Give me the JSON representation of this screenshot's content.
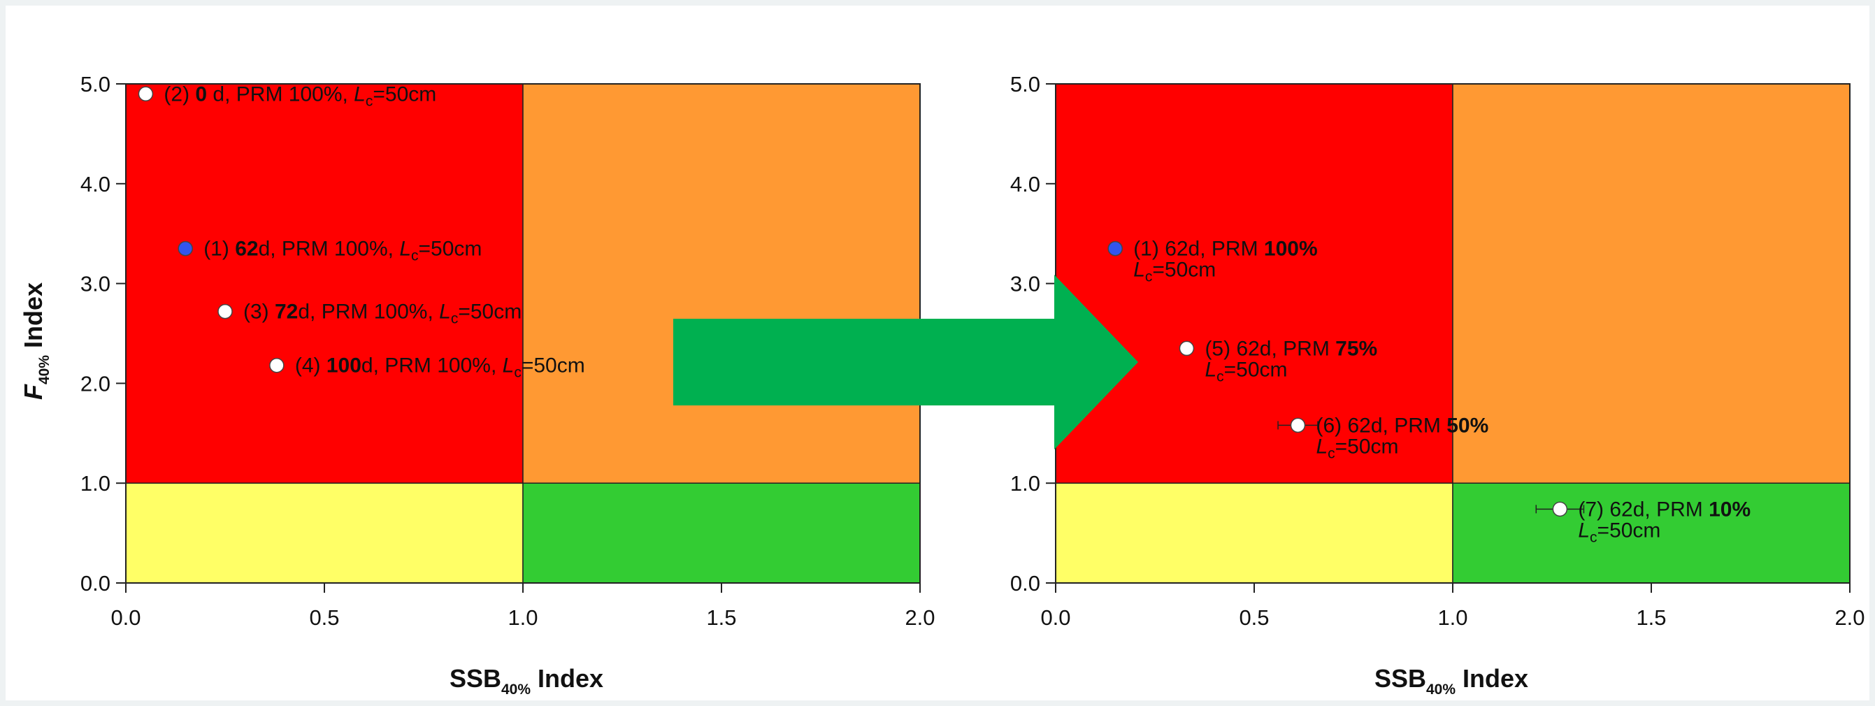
{
  "chart_data": [
    {
      "type": "scatter",
      "xlabel": "SSB40% Index",
      "ylabel": "F40% Index",
      "xlim": [
        0,
        2
      ],
      "ylim": [
        0,
        5
      ],
      "x_ticks": [
        "0.0",
        "0.5",
        "1.0",
        "1.5",
        "2.0"
      ],
      "y_ticks": [
        "0.0",
        "1.0",
        "2.0",
        "3.0",
        "4.0",
        "5.0"
      ],
      "zones": [
        {
          "x": [
            0,
            1
          ],
          "y": [
            1,
            5
          ],
          "color": "#ff0000"
        },
        {
          "x": [
            1,
            2
          ],
          "y": [
            1,
            5
          ],
          "color": "#ff9933"
        },
        {
          "x": [
            0,
            1
          ],
          "y": [
            0,
            1
          ],
          "color": "#ffff66"
        },
        {
          "x": [
            1,
            2
          ],
          "y": [
            0,
            1
          ],
          "color": "#33cc33"
        }
      ],
      "points": [
        {
          "x": 0.05,
          "y": 4.9,
          "color": "#ffffff",
          "label": [
            {
              "t": "(2) "
            },
            {
              "t": "0",
              "b": true
            },
            {
              "t": " d, PRM 100%, "
            },
            {
              "t": "L",
              "i": true
            },
            {
              "t": "c",
              "sub": true
            },
            {
              "t": "=50cm"
            }
          ]
        },
        {
          "x": 0.15,
          "y": 3.35,
          "color": "#3355ee",
          "label": [
            {
              "t": "(1) "
            },
            {
              "t": "62",
              "b": true
            },
            {
              "t": "d, PRM 100%, "
            },
            {
              "t": "L",
              "i": true
            },
            {
              "t": "c",
              "sub": true
            },
            {
              "t": "=50cm"
            }
          ]
        },
        {
          "x": 0.25,
          "y": 2.72,
          "color": "#ffffff",
          "label": [
            {
              "t": "(3) "
            },
            {
              "t": "72",
              "b": true
            },
            {
              "t": "d, PRM 100%, "
            },
            {
              "t": "L",
              "i": true
            },
            {
              "t": "c",
              "sub": true
            },
            {
              "t": "=50cm"
            }
          ]
        },
        {
          "x": 0.38,
          "y": 2.18,
          "color": "#ffffff",
          "label": [
            {
              "t": "(4) "
            },
            {
              "t": "100",
              "b": true
            },
            {
              "t": "d, PRM 100%, "
            },
            {
              "t": "L",
              "i": true
            },
            {
              "t": "c",
              "sub": true
            },
            {
              "t": "=50cm"
            }
          ]
        }
      ]
    },
    {
      "type": "scatter",
      "xlabel": "SSB40% Index",
      "ylabel": "",
      "xlim": [
        0,
        2
      ],
      "ylim": [
        0,
        5
      ],
      "x_ticks": [
        "0.0",
        "0.5",
        "1.0",
        "1.5",
        "2.0"
      ],
      "y_ticks": [
        "0.0",
        "1.0",
        "2.0",
        "3.0",
        "4.0",
        "5.0"
      ],
      "zones": [
        {
          "x": [
            0,
            1
          ],
          "y": [
            1,
            5
          ],
          "color": "#ff0000"
        },
        {
          "x": [
            1,
            2
          ],
          "y": [
            1,
            5
          ],
          "color": "#ff9933"
        },
        {
          "x": [
            0,
            1
          ],
          "y": [
            0,
            1
          ],
          "color": "#ffff66"
        },
        {
          "x": [
            1,
            2
          ],
          "y": [
            0,
            1
          ],
          "color": "#33cc33"
        }
      ],
      "points": [
        {
          "x": 0.15,
          "y": 3.35,
          "color": "#3355ee",
          "label": [
            {
              "t": "(1) 62d, PRM "
            },
            {
              "t": "100%",
              "b": true
            }
          ],
          "label2": [
            {
              "t": "L",
              "i": true
            },
            {
              "t": "c",
              "sub": true
            },
            {
              "t": "=50cm"
            }
          ]
        },
        {
          "x": 0.33,
          "y": 2.35,
          "color": "#ffffff",
          "label": [
            {
              "t": "(5) 62d, PRM "
            },
            {
              "t": "75%",
              "b": true
            }
          ],
          "label2": [
            {
              "t": "L",
              "i": true
            },
            {
              "t": "c",
              "sub": true
            },
            {
              "t": "=50cm"
            }
          ]
        },
        {
          "x": 0.61,
          "y": 1.58,
          "xerr": 0.05,
          "color": "#ffffff",
          "label": [
            {
              "t": "(6) 62d, PRM "
            },
            {
              "t": "50%",
              "b": true
            }
          ],
          "label2": [
            {
              "t": "L",
              "i": true
            },
            {
              "t": "c",
              "sub": true
            },
            {
              "t": "=50cm"
            }
          ]
        },
        {
          "x": 1.27,
          "y": 0.74,
          "xerr": 0.06,
          "color": "#ffffff",
          "label": [
            {
              "t": "(7) 62d, PRM "
            },
            {
              "t": "10%",
              "b": true
            }
          ],
          "label2": [
            {
              "t": "L",
              "i": true
            },
            {
              "t": "c",
              "sub": true
            },
            {
              "t": "=50cm"
            }
          ]
        }
      ]
    }
  ],
  "axis_text": {
    "ylabel_main": "F",
    "ylabel_sub": "40%",
    "ylabel_rest": " Index",
    "xlabel_main": "SSB",
    "xlabel_sub": "40%",
    "xlabel_rest": " Index"
  },
  "arrow": {
    "color": "#00b050"
  }
}
